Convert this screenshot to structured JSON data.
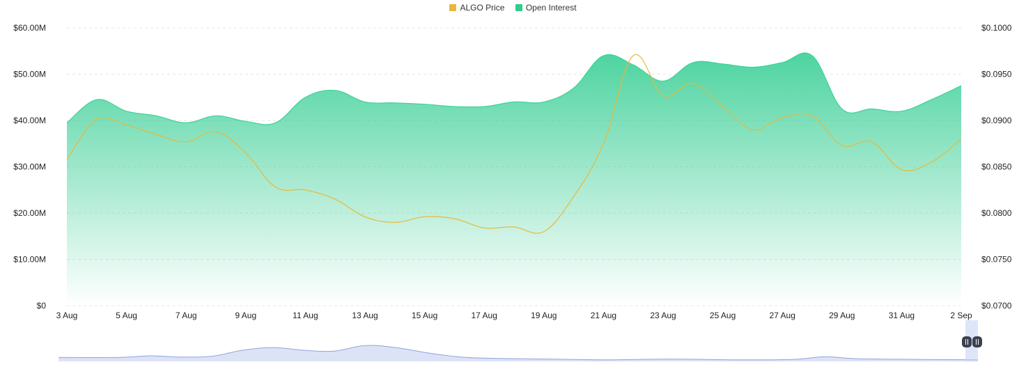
{
  "legend": {
    "price_label": "ALGO Price",
    "oi_label": "Open Interest"
  },
  "colors": {
    "price": "#e8b83a",
    "oi_fill": "#2ecc8f",
    "oi_line": "#3ad39a",
    "grid": "#e6e6e6",
    "navigator_fill": "#dde3f7",
    "navigator_line": "#8fa3dd",
    "handle": "#3b4150"
  },
  "navigator_icons": [
    "pause-handle-icon",
    "pause-handle-icon"
  ],
  "chart_data": {
    "type": "area",
    "x_ticks": [
      "3 Aug",
      "5 Aug",
      "7 Aug",
      "9 Aug",
      "11 Aug",
      "13 Aug",
      "15 Aug",
      "17 Aug",
      "19 Aug",
      "21 Aug",
      "23 Aug",
      "25 Aug",
      "27 Aug",
      "29 Aug",
      "31 Aug",
      "2 Sep"
    ],
    "y_left_ticks": [
      "$0",
      "$10.00M",
      "$20.00M",
      "$30.00M",
      "$40.00M",
      "$50.00M",
      "$60.00M"
    ],
    "y_right_ticks": [
      "$0.0700",
      "$0.0750",
      "$0.0800",
      "$0.0850",
      "$0.0900",
      "$0.0950",
      "$0.1000"
    ],
    "y_left_range": [
      0,
      60
    ],
    "y_right_range": [
      0.07,
      0.1
    ],
    "x_range": [
      0,
      30
    ],
    "grid": true,
    "legend_position": "top-center",
    "series": [
      {
        "name": "Open Interest",
        "axis": "left",
        "unit": "$M",
        "points": [
          [
            0,
            39.5
          ],
          [
            1,
            44.5
          ],
          [
            2,
            42
          ],
          [
            3,
            41
          ],
          [
            4,
            39.5
          ],
          [
            5,
            41
          ],
          [
            6,
            39.8
          ],
          [
            7,
            39.5
          ],
          [
            8,
            45
          ],
          [
            9,
            46.5
          ],
          [
            10,
            44
          ],
          [
            11,
            43.8
          ],
          [
            12,
            43.5
          ],
          [
            13,
            43
          ],
          [
            14,
            43
          ],
          [
            15,
            44
          ],
          [
            16,
            44
          ],
          [
            17,
            47
          ],
          [
            18,
            54
          ],
          [
            19,
            52
          ],
          [
            20,
            48.5
          ],
          [
            21,
            52.5
          ],
          [
            22,
            52.2
          ],
          [
            23,
            51.5
          ],
          [
            24,
            52.5
          ],
          [
            25,
            54
          ],
          [
            26,
            42.5
          ],
          [
            27,
            42.5
          ],
          [
            28,
            42
          ],
          [
            29,
            44.5
          ],
          [
            30,
            47.5
          ]
        ]
      },
      {
        "name": "ALGO Price",
        "axis": "right",
        "unit": "$",
        "points": [
          [
            0,
            0.0858
          ],
          [
            1,
            0.0901
          ],
          [
            2,
            0.0895
          ],
          [
            3,
            0.0885
          ],
          [
            4,
            0.0877
          ],
          [
            5,
            0.0888
          ],
          [
            6,
            0.0865
          ],
          [
            7,
            0.0828
          ],
          [
            8,
            0.0825
          ],
          [
            9,
            0.0815
          ],
          [
            10,
            0.0796
          ],
          [
            11,
            0.079
          ],
          [
            12,
            0.0796
          ],
          [
            13,
            0.0794
          ],
          [
            14,
            0.0784
          ],
          [
            15,
            0.0785
          ],
          [
            16,
            0.078
          ],
          [
            17,
            0.0818
          ],
          [
            18,
            0.0875
          ],
          [
            19,
            0.097
          ],
          [
            20,
            0.0927
          ],
          [
            21,
            0.094
          ],
          [
            22,
            0.0915
          ],
          [
            23,
            0.089
          ],
          [
            24,
            0.0903
          ],
          [
            25,
            0.0905
          ],
          [
            26,
            0.0873
          ],
          [
            27,
            0.0877
          ],
          [
            28,
            0.0847
          ],
          [
            29,
            0.0855
          ],
          [
            30,
            0.088
          ]
        ]
      }
    ],
    "navigator": {
      "series": [
        [
          0,
          0.1
        ],
        [
          2,
          0.1
        ],
        [
          3,
          0.14
        ],
        [
          4,
          0.11
        ],
        [
          5,
          0.13
        ],
        [
          6,
          0.28
        ],
        [
          7,
          0.35
        ],
        [
          8,
          0.28
        ],
        [
          9,
          0.26
        ],
        [
          10,
          0.4
        ],
        [
          11,
          0.35
        ],
        [
          12,
          0.22
        ],
        [
          13,
          0.12
        ],
        [
          14,
          0.08
        ],
        [
          16,
          0.06
        ],
        [
          18,
          0.04
        ],
        [
          20,
          0.06
        ],
        [
          22,
          0.04
        ],
        [
          24,
          0.05
        ],
        [
          25,
          0.12
        ],
        [
          26,
          0.07
        ],
        [
          28,
          0.05
        ],
        [
          30,
          0.04
        ]
      ]
    }
  }
}
